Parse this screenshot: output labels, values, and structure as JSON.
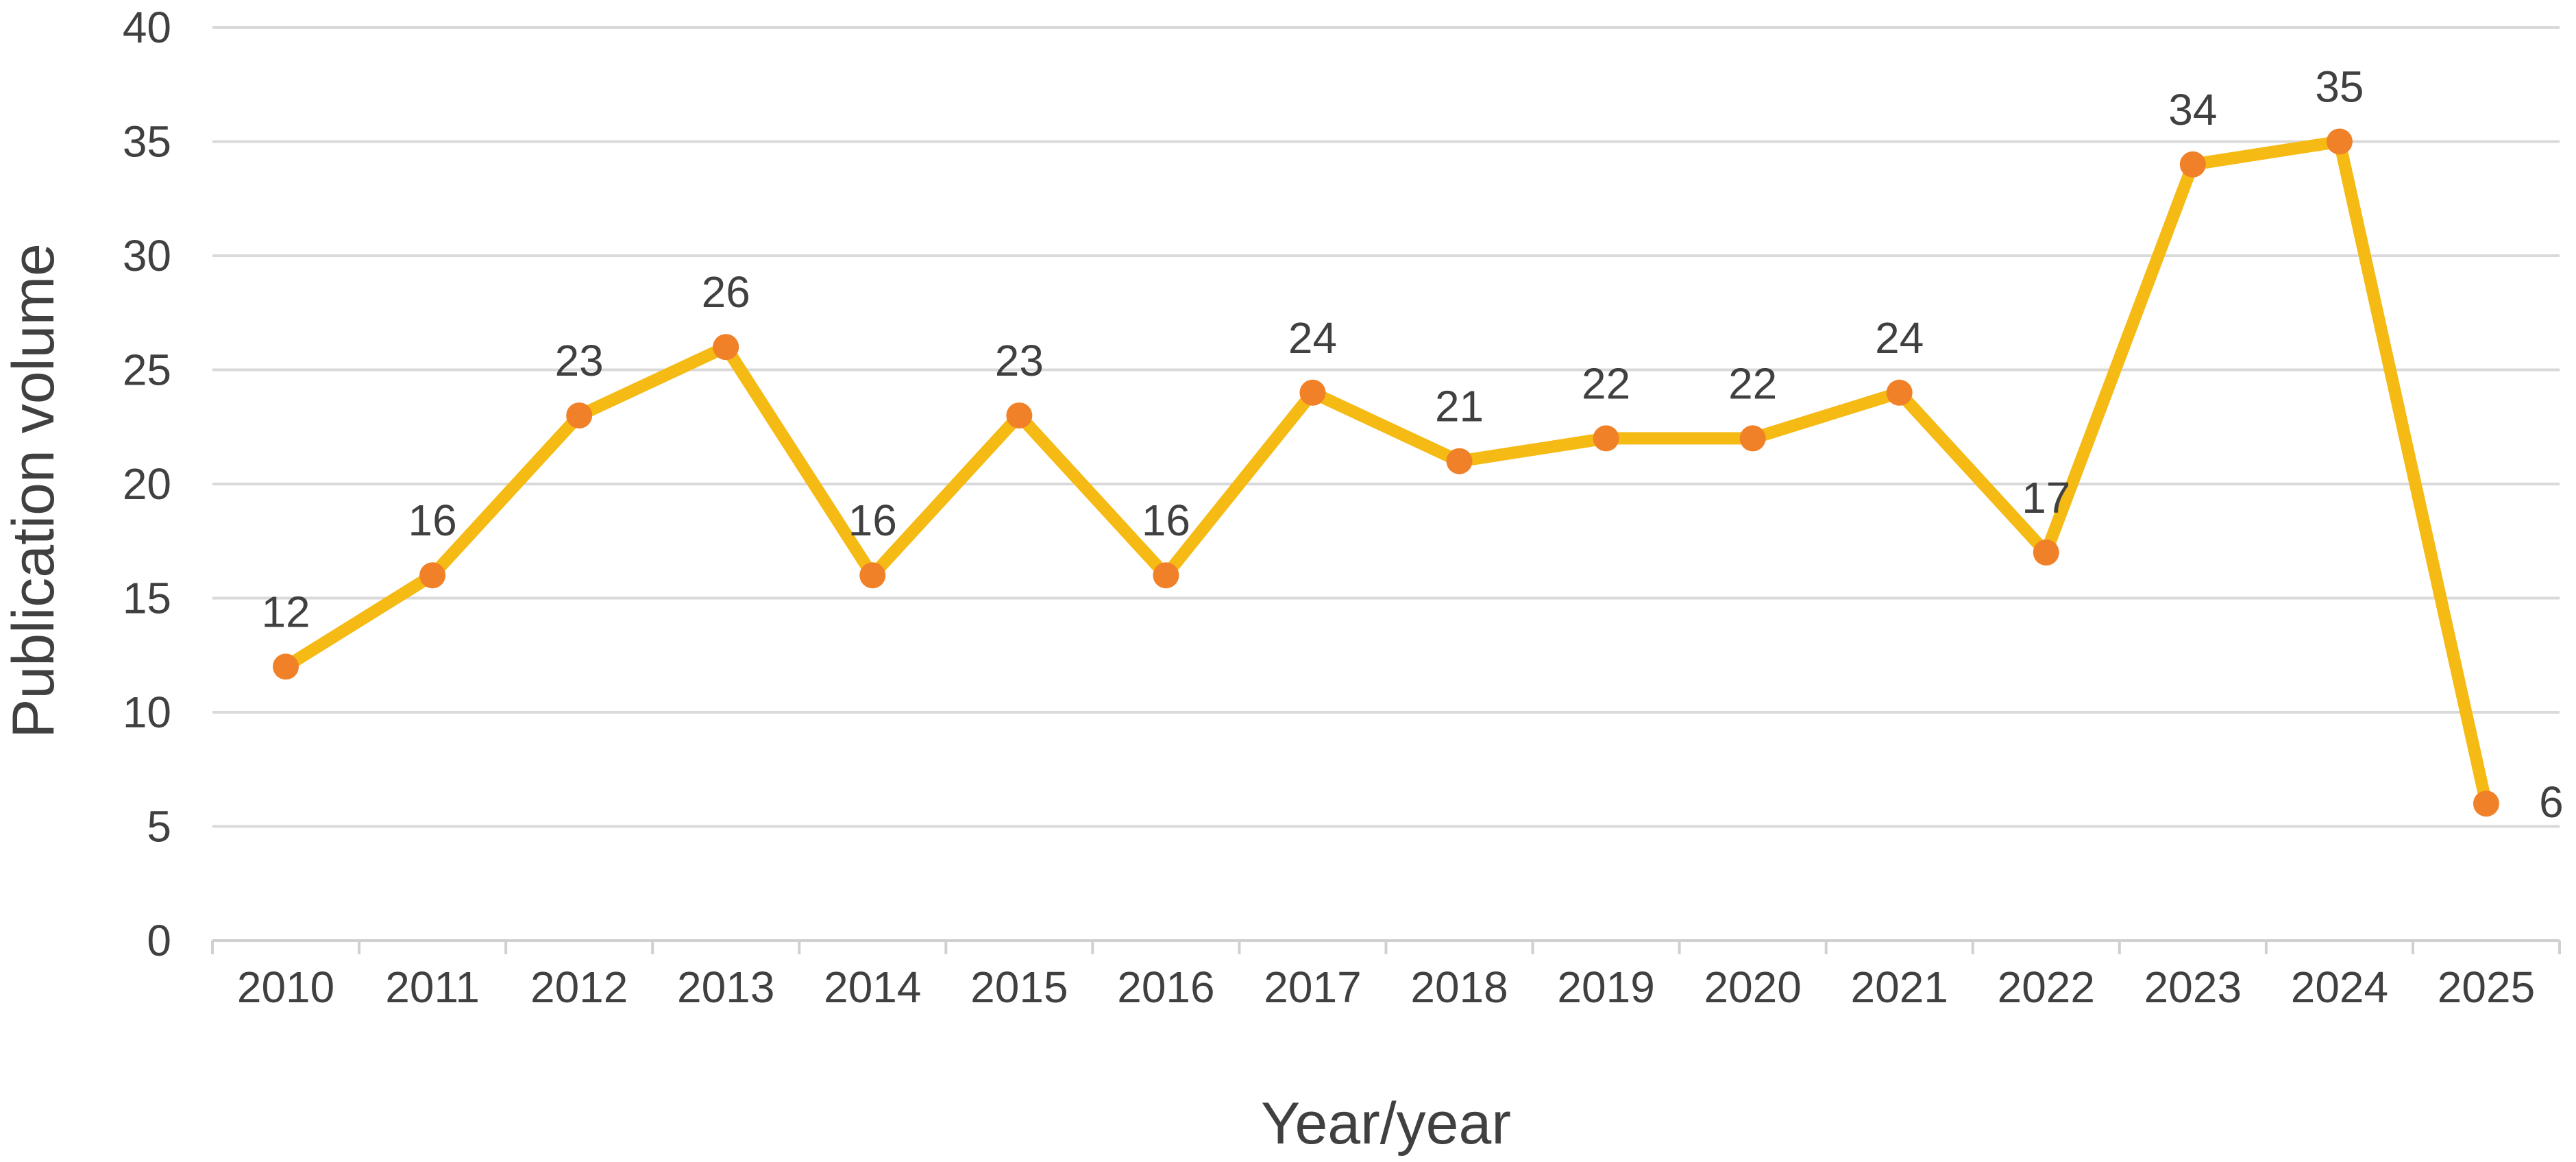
{
  "chart_data": {
    "type": "line",
    "title": "",
    "xlabel": "Year/year",
    "ylabel": "Publication volume",
    "x": [
      "2010",
      "2011",
      "2012",
      "2013",
      "2014",
      "2015",
      "2016",
      "2017",
      "2018",
      "2019",
      "2020",
      "2021",
      "2022",
      "2023",
      "2024",
      "2025"
    ],
    "series": [
      {
        "values": [
          12,
          16,
          23,
          26,
          16,
          23,
          16,
          24,
          21,
          22,
          22,
          24,
          17,
          34,
          35,
          6
        ],
        "line_color": "#F5BA14",
        "marker_color": "#F08128"
      }
    ],
    "ylim": [
      0,
      40
    ],
    "yticks": [
      0,
      5,
      10,
      15,
      20,
      25,
      30,
      35,
      40
    ],
    "grid": true,
    "legend": "none",
    "data_labels": true
  }
}
